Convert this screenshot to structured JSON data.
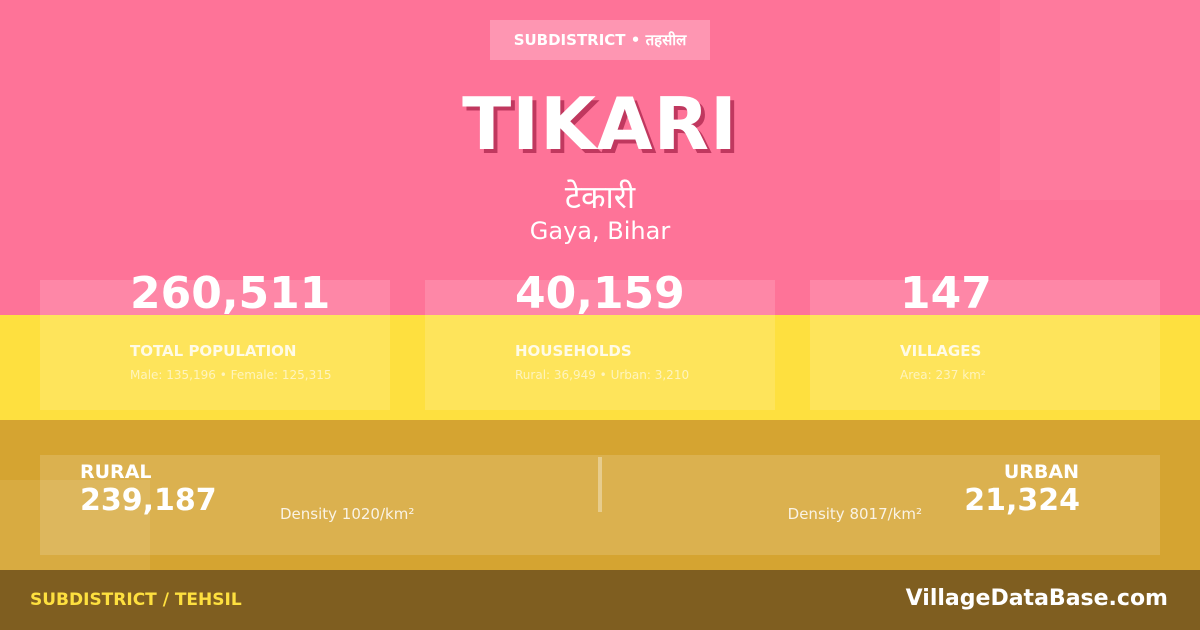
{
  "header": {
    "badge": "SUBDISTRICT • तहसील",
    "title": "TIKARI",
    "title_hindi": "टेकारी",
    "location": "Gaya, Bihar"
  },
  "stats": [
    {
      "value": "260,511",
      "label": "TOTAL POPULATION",
      "detail": "Male: 135,196 • Female: 125,315"
    },
    {
      "value": "40,159",
      "label": "HOUSEHOLDS",
      "detail": "Rural: 36,949 • Urban: 3,210"
    },
    {
      "value": "147",
      "label": "VILLAGES",
      "detail": "Area: 237 km²"
    }
  ],
  "split": {
    "rural_label": "RURAL",
    "rural_value": "239,187",
    "rural_density": "Density 1020/km²",
    "urban_label": "URBAN",
    "urban_value": "21,324",
    "urban_density": "Density 8017/km²"
  },
  "footer": {
    "left": "SUBDISTRICT / TEHSIL",
    "right": "VillageDataBase.com"
  },
  "colors": {
    "pink": "#fe7398",
    "yellow": "#fee03f",
    "gold": "#d5a431",
    "footer": "#7f5e20"
  }
}
